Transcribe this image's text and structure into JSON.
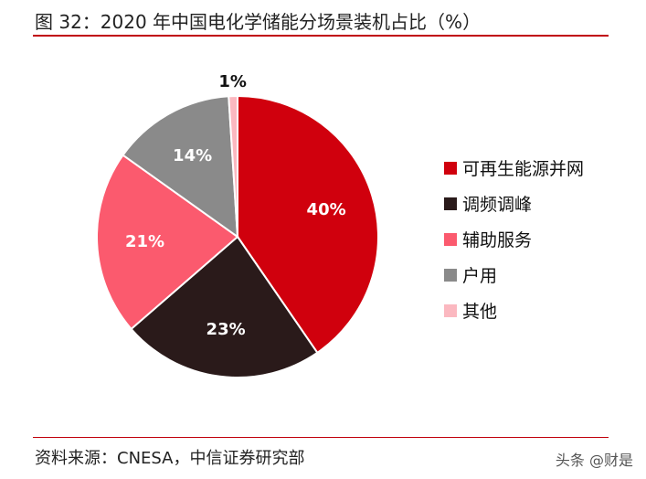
{
  "header": {
    "title": "图 32：2020 年中国电化学储能分场景装机占比（%）"
  },
  "footer": {
    "source": "资料来源：CNESA，中信证券研究部",
    "watermark": "头条 @财是"
  },
  "chart_data": {
    "type": "pie",
    "title": "图 32：2020 年中国电化学储能分场景装机占比（%）",
    "slices": [
      {
        "label": "可再生能源并网",
        "value": 40,
        "display": "40%",
        "color": "#d0000d",
        "text_color": "#ffffff"
      },
      {
        "label": "调频调峰",
        "value": 23,
        "display": "23%",
        "color": "#2a1a1a",
        "text_color": "#ffffff"
      },
      {
        "label": "辅助服务",
        "value": 21,
        "display": "21%",
        "color": "#fb5a6e",
        "text_color": "#ffffff"
      },
      {
        "label": "户用",
        "value": 14,
        "display": "14%",
        "color": "#8a8a8a",
        "text_color": "#ffffff"
      },
      {
        "label": "其他",
        "value": 1,
        "display": "1%",
        "color": "#fbb8c0",
        "text_color": "#111111"
      }
    ],
    "start_angle": "12 o'clock",
    "direction": "clockwise",
    "legend_position": "right"
  }
}
